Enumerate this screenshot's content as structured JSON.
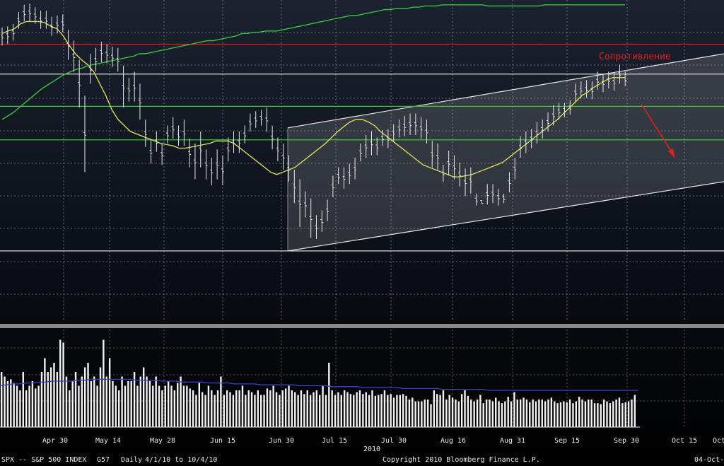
{
  "chart_data": {
    "type": "bar",
    "ticker": "SPX -- S&P 500 INDEX",
    "chart_code": "G57",
    "period": "Daily",
    "date_range": "4/1/10 to 10/4/10",
    "copyright": "Copyright 2010 Bloomberg Finance L.P.",
    "date_stamp": "04-Oct-",
    "year_label": "2010",
    "annotation": "Сопротивление",
    "x_tick_labels": [
      "Apr 30",
      "May 14",
      "May 28",
      "Jun 15",
      "Jun 30",
      "Jul 15",
      "Jul 30",
      "Aug 16",
      "Aug 31",
      "Sep 15",
      "Sep 30",
      "Oct 15",
      "Oct"
    ],
    "price_series": {
      "name": "SPX",
      "high": [
        1187,
        1188,
        1190,
        1200,
        1206,
        1207,
        1204,
        1201,
        1201,
        1196,
        1197,
        1198,
        1185,
        1176,
        1160,
        1130,
        1165,
        1170,
        1175,
        1173,
        1171,
        1170,
        1155,
        1145,
        1150,
        1140,
        1110,
        1093,
        1100,
        1090,
        1105,
        1112,
        1105,
        1110,
        1094,
        1090,
        1100,
        1085,
        1078,
        1085,
        1080,
        1095,
        1100,
        1100,
        1105,
        1115,
        1117,
        1118,
        1120,
        1105,
        1095,
        1090,
        1080,
        1068,
        1060,
        1050,
        1044,
        1030,
        1034,
        1043,
        1063,
        1070,
        1070,
        1073,
        1078,
        1090,
        1097,
        1100,
        1095,
        1101,
        1102,
        1106,
        1110,
        1113,
        1115,
        1115,
        1112,
        1110,
        1092,
        1090,
        1072,
        1084,
        1080,
        1074,
        1069,
        1070,
        1048,
        1042,
        1056,
        1056,
        1052,
        1048,
        1066,
        1078,
        1096,
        1100,
        1102,
        1108,
        1110,
        1116,
        1122,
        1124,
        1124,
        1126,
        1140,
        1142,
        1143,
        1142,
        1150,
        1148,
        1150,
        1149,
        1156,
        1150
      ],
      "low": [
        1172,
        1173,
        1176,
        1186,
        1192,
        1192,
        1190,
        1186,
        1186,
        1180,
        1182,
        1183,
        1160,
        1150,
        1120,
        1066,
        1140,
        1150,
        1158,
        1157,
        1154,
        1150,
        1120,
        1125,
        1125,
        1110,
        1087,
        1073,
        1083,
        1072,
        1090,
        1094,
        1088,
        1088,
        1070,
        1060,
        1070,
        1060,
        1055,
        1060,
        1055,
        1075,
        1082,
        1082,
        1090,
        1100,
        1103,
        1105,
        1100,
        1085,
        1075,
        1068,
        1058,
        1040,
        1020,
        1028,
        1011,
        1010,
        1016,
        1025,
        1045,
        1056,
        1052,
        1056,
        1060,
        1075,
        1078,
        1080,
        1080,
        1088,
        1086,
        1092,
        1095,
        1096,
        1097,
        1097,
        1094,
        1090,
        1070,
        1068,
        1058,
        1063,
        1060,
        1054,
        1046,
        1048,
        1038,
        1040,
        1039,
        1040,
        1038,
        1040,
        1049,
        1060,
        1078,
        1082,
        1086,
        1090,
        1094,
        1100,
        1105,
        1110,
        1112,
        1114,
        1125,
        1128,
        1128,
        1127,
        1135,
        1133,
        1136,
        1134,
        1140,
        1138
      ]
    },
    "moving_averages": [
      {
        "color": "#d8d85a",
        "values": [
          1182,
          1184,
          1186,
          1190,
          1192,
          1192,
          1192,
          1191,
          1188,
          1186,
          1180,
          1172,
          1165,
          1160,
          1156,
          1150,
          1140,
          1130,
          1118,
          1110,
          1105,
          1100,
          1098,
          1096,
          1094,
          1092,
          1090,
          1089,
          1088,
          1086,
          1086,
          1087,
          1088,
          1089,
          1090,
          1092,
          1092,
          1092,
          1090,
          1086,
          1082,
          1078,
          1074,
          1070,
          1066,
          1064,
          1066,
          1068,
          1070,
          1074,
          1078,
          1082,
          1086,
          1090,
          1095,
          1100,
          1104,
          1108,
          1110,
          1110,
          1108,
          1105,
          1100,
          1096,
          1092,
          1088,
          1084,
          1080,
          1076,
          1072,
          1070,
          1068,
          1066,
          1064,
          1062,
          1062,
          1063,
          1064,
          1066,
          1068,
          1070,
          1072,
          1074,
          1078,
          1082,
          1086,
          1090,
          1094,
          1098,
          1102,
          1106,
          1110,
          1115,
          1120,
          1125,
          1130,
          1133,
          1137,
          1140,
          1143,
          1145,
          1145,
          1145
        ]
      },
      {
        "color": "#3dbf3d",
        "values": [
          1110,
          1113,
          1116,
          1120,
          1124,
          1128,
          1132,
          1136,
          1139,
          1142,
          1145,
          1148,
          1150,
          1152,
          1153,
          1155,
          1156,
          1157,
          1158,
          1159,
          1160,
          1161,
          1162,
          1163,
          1165,
          1165,
          1166,
          1167,
          1168,
          1169,
          1170,
          1171,
          1172,
          1173,
          1174,
          1175,
          1176,
          1176,
          1177,
          1178,
          1179,
          1180,
          1182,
          1182,
          1183,
          1183,
          1184,
          1184,
          1184,
          1185,
          1186,
          1187,
          1188,
          1189,
          1190,
          1191,
          1192,
          1193,
          1194,
          1195,
          1196,
          1197,
          1197,
          1198,
          1199,
          1200,
          1201,
          1202,
          1202,
          1203,
          1203,
          1203,
          1204,
          1204,
          1205,
          1205,
          1205,
          1206,
          1206,
          1206,
          1206,
          1206,
          1206,
          1206,
          1206,
          1205,
          1205,
          1205,
          1205,
          1205,
          1205,
          1205,
          1205,
          1205,
          1205,
          1206,
          1206,
          1206,
          1206,
          1206,
          1206,
          1206,
          1206,
          1206,
          1206,
          1206,
          1206,
          1206,
          1206,
          1206
        ]
      }
    ],
    "horizontal_lines": [
      {
        "value": 1173,
        "color": "#e02020"
      },
      {
        "value": 1148,
        "color": "#dddddd"
      },
      {
        "value": 1121,
        "color": "#33cc33"
      },
      {
        "value": 1093,
        "color": "#33cc33"
      },
      {
        "value": 1000,
        "color": "#dddddd"
      }
    ],
    "channel": {
      "upper": {
        "start_index": 65,
        "start_value": 1103,
        "end_index": 132,
        "end_value": 1165
      },
      "lower": {
        "start_index": 65,
        "start_value": 1000,
        "end_index": 132,
        "end_value": 1058
      }
    },
    "volume_series": {
      "name": "Volume",
      "values": [
        60,
        55,
        50,
        52,
        48,
        45,
        40,
        60,
        40,
        45,
        50,
        42,
        45,
        60,
        75,
        60,
        65,
        70,
        60,
        95,
        92,
        55,
        40,
        50,
        60,
        45,
        55,
        65,
        70,
        50,
        55,
        45,
        65,
        95,
        55,
        75,
        50,
        45,
        40,
        55,
        45,
        50,
        50,
        60,
        45,
        55,
        65,
        55,
        50,
        45,
        55,
        45,
        40,
        45,
        50,
        45,
        40,
        48,
        55,
        45,
        45,
        42,
        40,
        35,
        48,
        38,
        35,
        45,
        40,
        35,
        40,
        55,
        35,
        40,
        38,
        35,
        40,
        40,
        45,
        35,
        40,
        38,
        35,
        40,
        35,
        35,
        42,
        40,
        45,
        38,
        35,
        40,
        42,
        45,
        40,
        38,
        35,
        40,
        36,
        40,
        35,
        38,
        40,
        35,
        45,
        35,
        70,
        40,
        35,
        38,
        35,
        40,
        38,
        36,
        35,
        38,
        40,
        36,
        38,
        35,
        40,
        34,
        35,
        36,
        40,
        35,
        36,
        32,
        35,
        35,
        36,
        34,
        30,
        32,
        28,
        28,
        28,
        30,
        30,
        25,
        40,
        36,
        35,
        40,
        30,
        35,
        32,
        30,
        28,
        36,
        40,
        34,
        30,
        28,
        30,
        35,
        26,
        30,
        30,
        28,
        32,
        28,
        26,
        28,
        33,
        28,
        38,
        30,
        30,
        32,
        30,
        27,
        30,
        28,
        30,
        30,
        28,
        30,
        32,
        28,
        26,
        27,
        28,
        27,
        30,
        26,
        28,
        33,
        30,
        28,
        30,
        30,
        26,
        26,
        25,
        30,
        28,
        26,
        28,
        30,
        32,
        26,
        27,
        28,
        30,
        35
      ],
      "average": {
        "color": "#3344cc",
        "values": [
          45,
          46,
          47,
          47,
          48,
          48,
          49,
          49,
          50,
          50,
          50,
          50,
          51,
          51,
          52,
          52,
          52,
          52,
          52,
          52,
          52,
          51,
          51,
          51,
          51,
          50,
          50,
          50,
          49,
          49,
          49,
          49,
          48,
          48,
          48,
          48,
          47,
          47,
          47,
          47,
          46,
          46,
          46,
          46,
          46,
          46,
          45,
          45,
          45,
          45,
          45,
          44,
          44,
          44,
          44,
          44,
          43,
          43,
          43,
          43,
          43,
          43,
          42,
          42,
          42,
          42,
          42,
          42,
          41,
          41,
          41,
          41,
          41,
          41,
          41,
          40,
          40,
          40,
          40,
          40,
          40,
          40,
          40,
          40,
          40,
          40,
          40,
          40,
          40,
          40,
          40,
          40,
          40,
          40,
          40,
          40,
          40,
          40,
          40
        ]
      }
    }
  }
}
